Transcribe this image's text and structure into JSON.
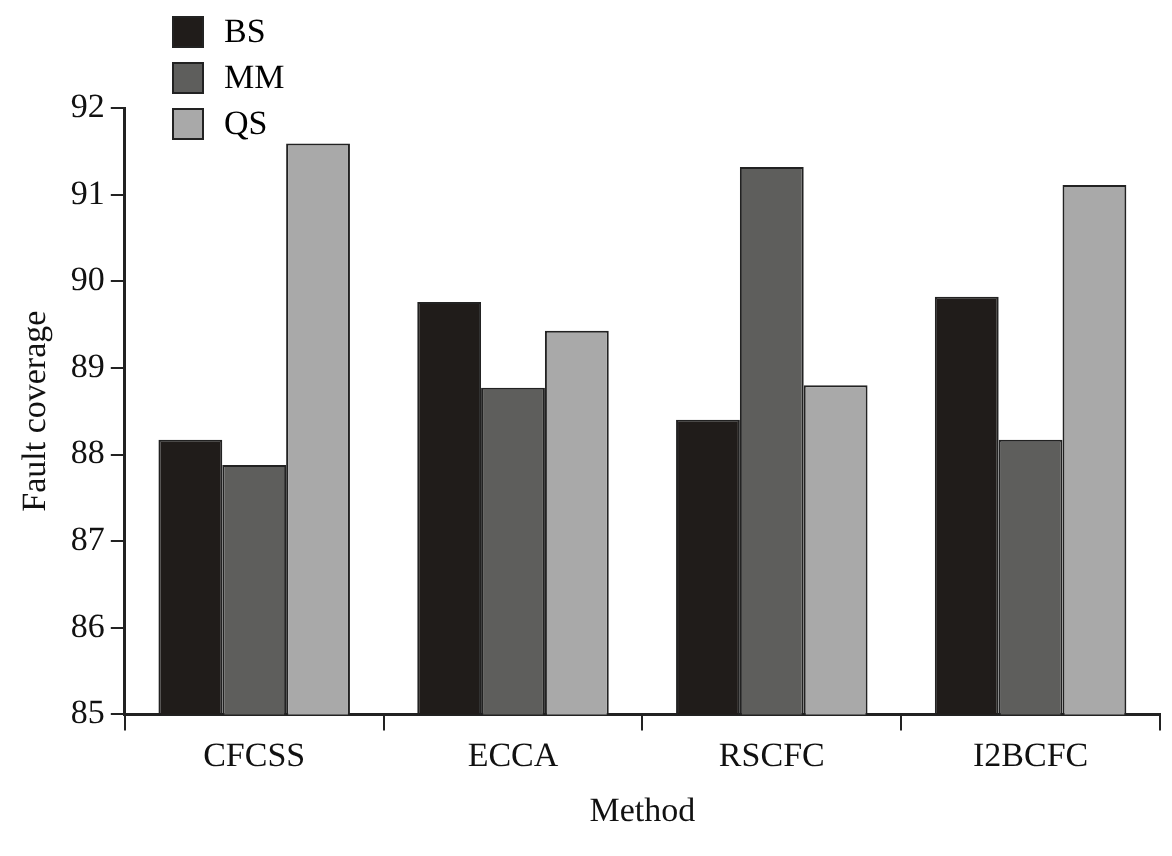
{
  "chart_data": {
    "type": "bar",
    "xlabel": "Method",
    "ylabel": "Fault coverage",
    "categories": [
      "CFCSS",
      "ECCA",
      "RSCFC",
      "I2BCFC"
    ],
    "series": [
      {
        "name": "BS",
        "color": "#201c1a",
        "values": [
          88.17,
          89.76,
          88.4,
          89.82
        ]
      },
      {
        "name": "MM",
        "color": "#5e5e5c",
        "values": [
          87.88,
          88.77,
          91.32,
          88.17
        ]
      },
      {
        "name": "QS",
        "color": "#a9a9a9",
        "values": [
          91.59,
          89.43,
          88.8,
          91.11
        ]
      }
    ],
    "ylim": [
      85,
      92
    ],
    "yticks": [
      85,
      86,
      87,
      88,
      89,
      90,
      91,
      92
    ],
    "grid": false,
    "legend": "top left"
  }
}
